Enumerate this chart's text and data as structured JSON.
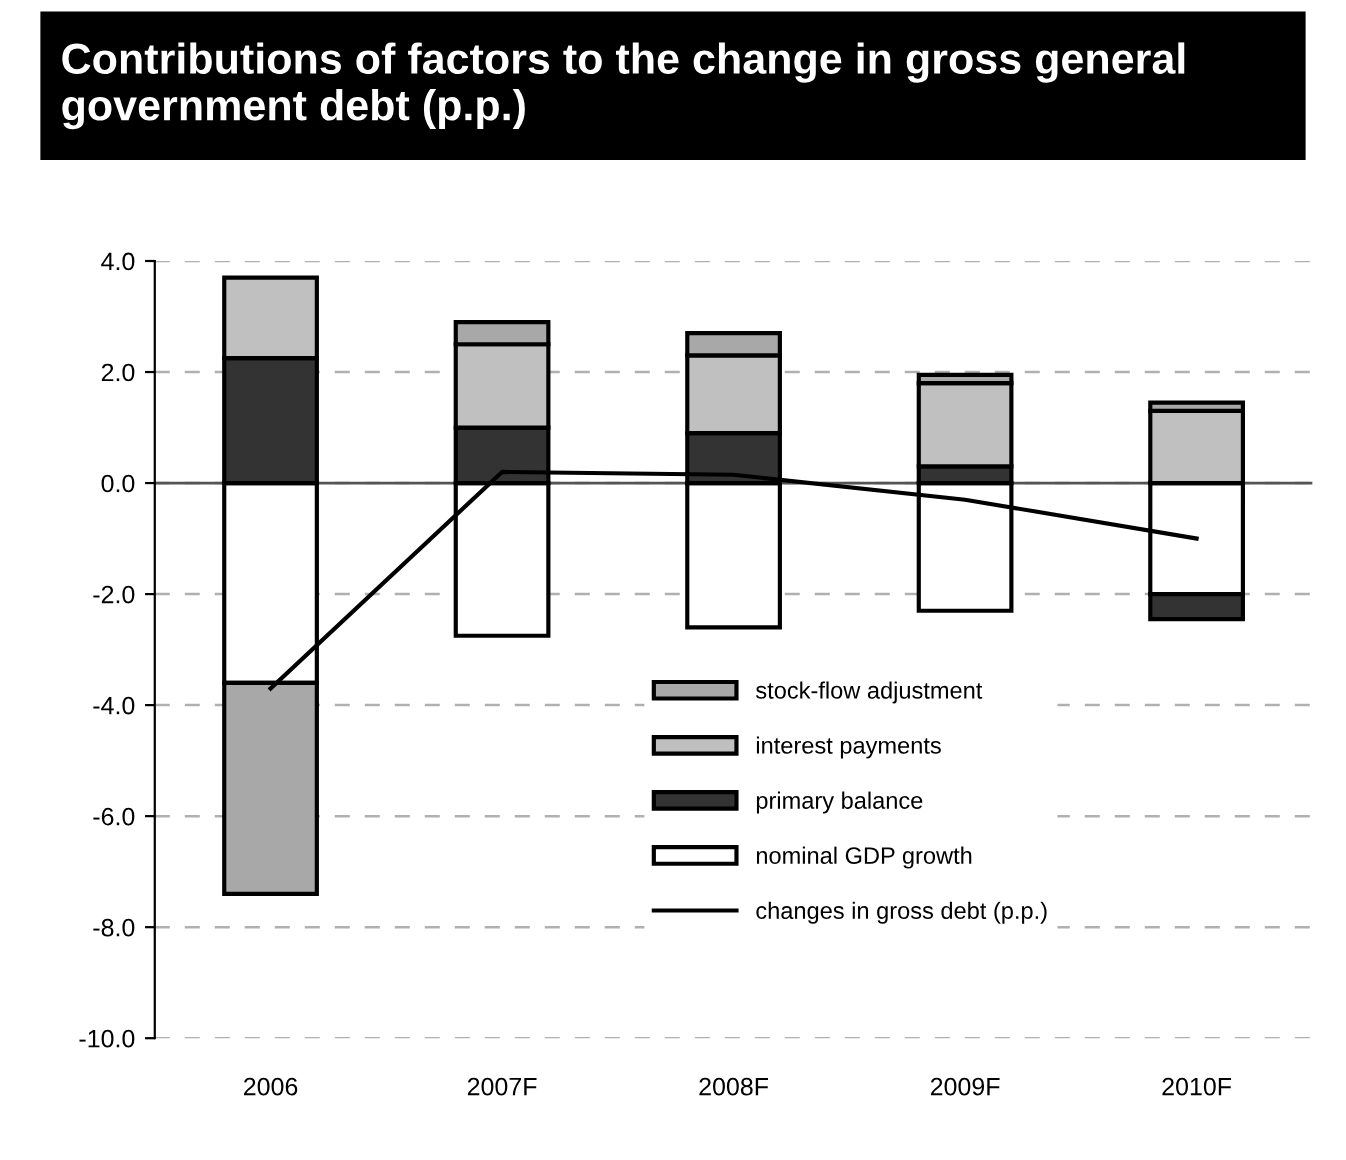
{
  "chart_data": {
    "type": "bar",
    "stacked": true,
    "title": "Contributions of factors to the change in gross general government debt (p.p.)",
    "categories": [
      "2006",
      "2007F",
      "2008F",
      "2009F",
      "2010F"
    ],
    "series": [
      {
        "name": "nominal GDP growth",
        "color": "#ffffff",
        "values": [
          -3.6,
          -2.75,
          -2.6,
          -2.3,
          -2.0
        ]
      },
      {
        "name": "primary balance",
        "color": "#333333",
        "values": [
          2.25,
          1.0,
          0.9,
          0.3,
          -0.45
        ]
      },
      {
        "name": "interest payments",
        "color": "#c0c0c0",
        "values": [
          1.45,
          1.5,
          1.4,
          1.5,
          1.3
        ]
      },
      {
        "name": "stock-flow adjustment",
        "color": "#a8a8a8",
        "values": [
          -3.8,
          0.4,
          0.4,
          0.15,
          0.15
        ]
      },
      {
        "name": "changes in gross debt (p.p.)",
        "type": "line",
        "color": "#000000",
        "values": [
          -3.7,
          0.2,
          0.15,
          -0.3,
          -1.0
        ]
      }
    ],
    "ylim": [
      -10.0,
      4.0
    ],
    "yticks": [
      {
        "value": 4,
        "label": "4.0"
      },
      {
        "value": 2,
        "label": "2.0"
      },
      {
        "value": 0,
        "label": "0.0"
      },
      {
        "value": -2,
        "label": "-2.0"
      },
      {
        "value": -4,
        "label": "-4.0"
      },
      {
        "value": -6,
        "label": "-6.0"
      },
      {
        "value": -8,
        "label": "-8.0"
      },
      {
        "value": -10,
        "label": "-10.0"
      }
    ],
    "grid": "y",
    "legend": "bottom right"
  }
}
